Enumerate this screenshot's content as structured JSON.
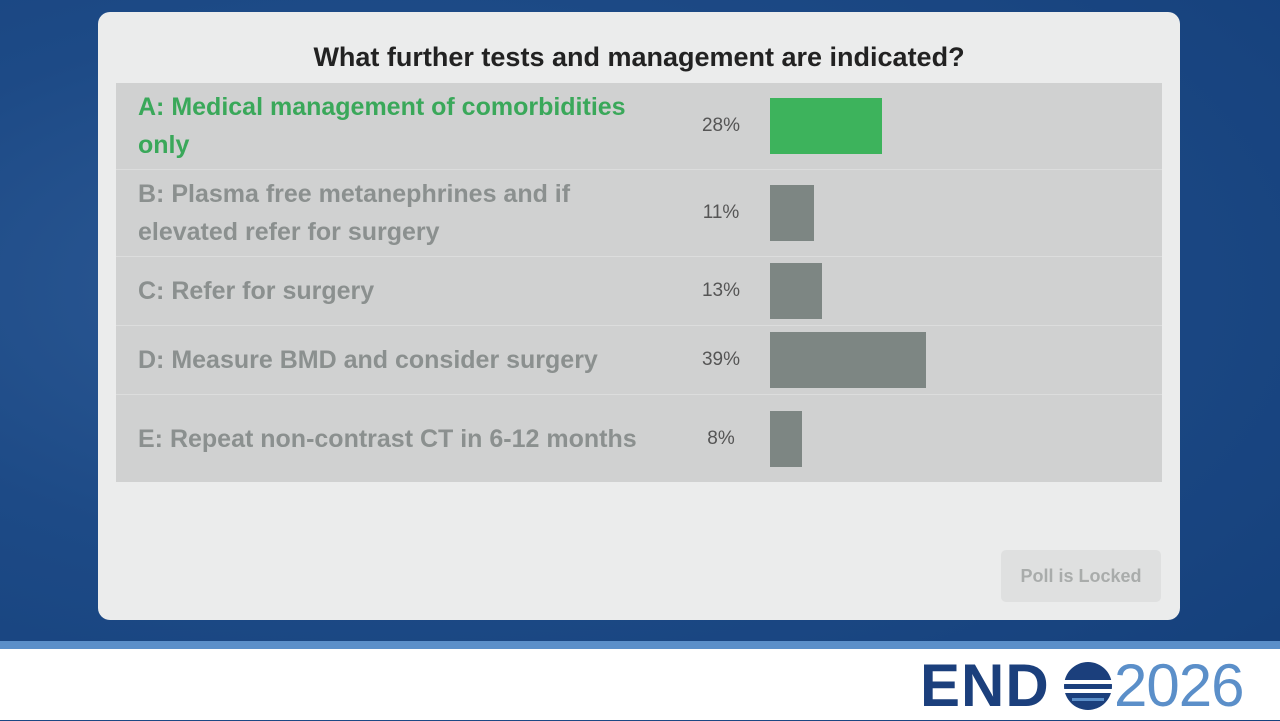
{
  "poll": {
    "question": "What further tests and management are indicated?",
    "options": [
      {
        "label": "A: Medical management of comorbidities only",
        "percent": 28,
        "percent_label": "28%",
        "color": "#3db35c",
        "label_color": "#3aa85a"
      },
      {
        "label": "B: Plasma free metanephrines and if elevated refer for surgery",
        "percent": 11,
        "percent_label": "11%",
        "color": "#7d8683",
        "label_color": "#8b908f"
      },
      {
        "label": "C: Refer for surgery",
        "percent": 13,
        "percent_label": "13%",
        "color": "#7d8683",
        "label_color": "#8b908f"
      },
      {
        "label": "D: Measure BMD and consider surgery",
        "percent": 39,
        "percent_label": "39%",
        "color": "#7d8683",
        "label_color": "#8b908f"
      },
      {
        "label": "E: Repeat non-contrast CT in 6-12 months",
        "percent": 8,
        "percent_label": "8%",
        "color": "#7d8683",
        "label_color": "#8b908f"
      }
    ],
    "button": "Poll is Locked"
  },
  "logo": {
    "brand": "END",
    "year": "2026"
  }
}
